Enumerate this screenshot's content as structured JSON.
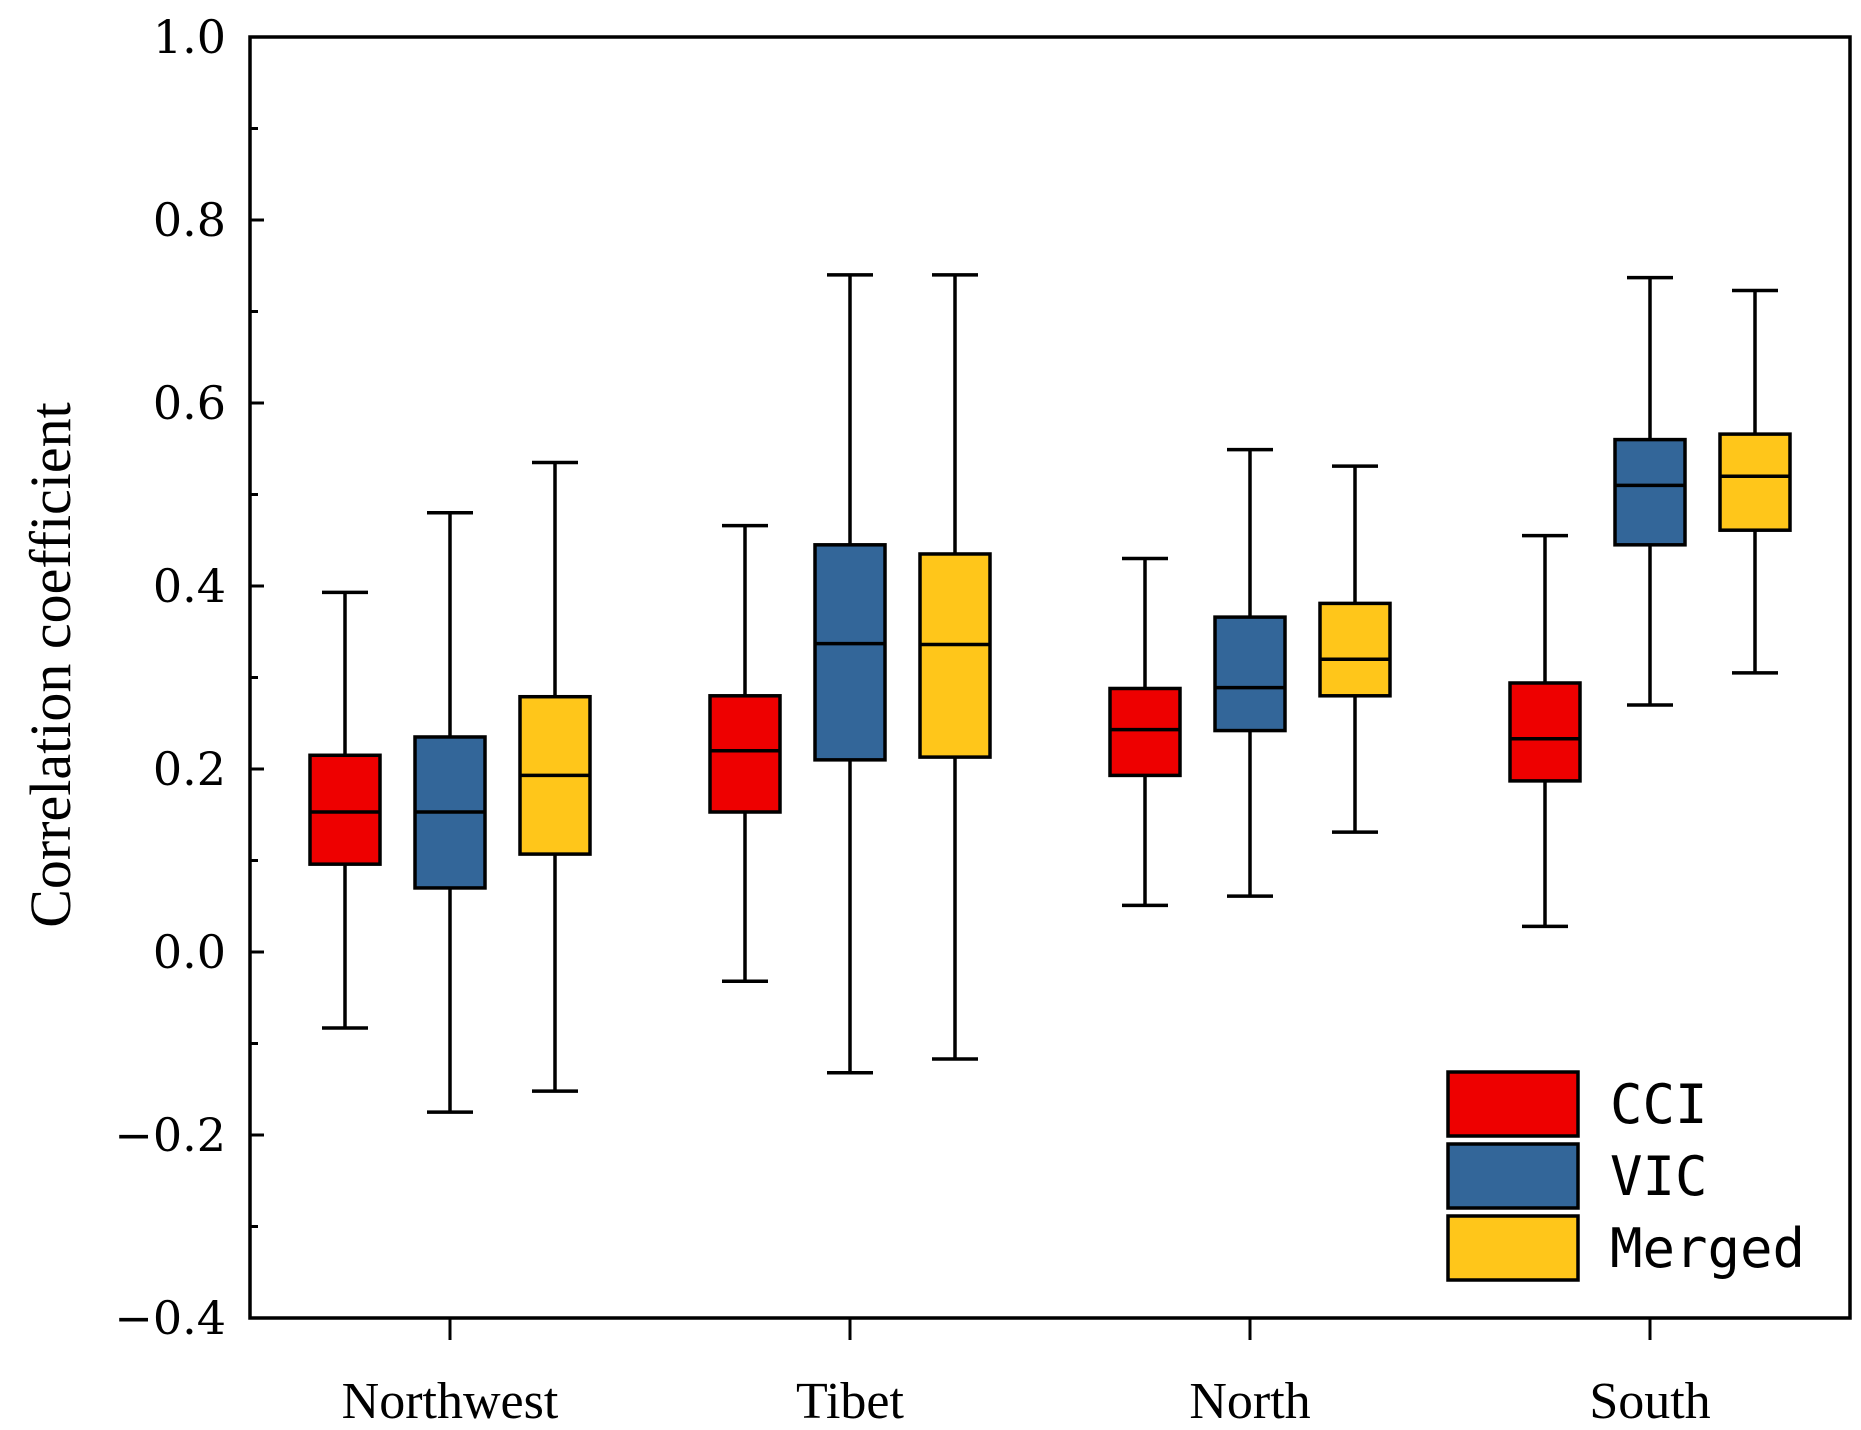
{
  "chart_data": {
    "type": "boxplot",
    "title": "",
    "xlabel": "",
    "ylabel": "Correlation coefficient",
    "ylim": [
      -0.4,
      1.0
    ],
    "yticks": [
      {
        "value": -0.4,
        "label": "−0.4"
      },
      {
        "value": -0.2,
        "label": "−0.2"
      },
      {
        "value": 0.0,
        "label": "0.0"
      },
      {
        "value": 0.2,
        "label": "0.2"
      },
      {
        "value": 0.4,
        "label": "0.4"
      },
      {
        "value": 0.6,
        "label": "0.6"
      },
      {
        "value": 0.8,
        "label": "0.8"
      },
      {
        "value": 1.0,
        "label": "1.0"
      }
    ],
    "yminor_step": 0.1,
    "categories": [
      "Northwest",
      "Tibet",
      "North",
      "South"
    ],
    "legend_position": "bottom-right",
    "series": [
      {
        "name": "CCI",
        "color": "#ee0000",
        "boxes": [
          {
            "min": -0.083,
            "q1": 0.096,
            "median": 0.153,
            "q3": 0.215,
            "max": 0.393
          },
          {
            "min": -0.032,
            "q1": 0.153,
            "median": 0.22,
            "q3": 0.28,
            "max": 0.466
          },
          {
            "min": 0.051,
            "q1": 0.193,
            "median": 0.243,
            "q3": 0.288,
            "max": 0.43
          },
          {
            "min": 0.028,
            "q1": 0.187,
            "median": 0.233,
            "q3": 0.294,
            "max": 0.455
          }
        ]
      },
      {
        "name": "VIC",
        "color": "#336699",
        "boxes": [
          {
            "min": -0.175,
            "q1": 0.07,
            "median": 0.153,
            "q3": 0.235,
            "max": 0.48
          },
          {
            "min": -0.132,
            "q1": 0.21,
            "median": 0.337,
            "q3": 0.445,
            "max": 0.74
          },
          {
            "min": 0.061,
            "q1": 0.242,
            "median": 0.289,
            "q3": 0.366,
            "max": 0.549
          },
          {
            "min": 0.27,
            "q1": 0.445,
            "median": 0.51,
            "q3": 0.56,
            "max": 0.737
          }
        ]
      },
      {
        "name": "Merged",
        "color": "#ffc61a",
        "boxes": [
          {
            "min": -0.152,
            "q1": 0.107,
            "median": 0.193,
            "q3": 0.279,
            "max": 0.535
          },
          {
            "min": -0.117,
            "q1": 0.213,
            "median": 0.336,
            "q3": 0.435,
            "max": 0.74
          },
          {
            "min": 0.131,
            "q1": 0.28,
            "median": 0.32,
            "q3": 0.381,
            "max": 0.531
          },
          {
            "min": 0.305,
            "q1": 0.461,
            "median": 0.52,
            "q3": 0.566,
            "max": 0.723
          }
        ]
      }
    ]
  }
}
